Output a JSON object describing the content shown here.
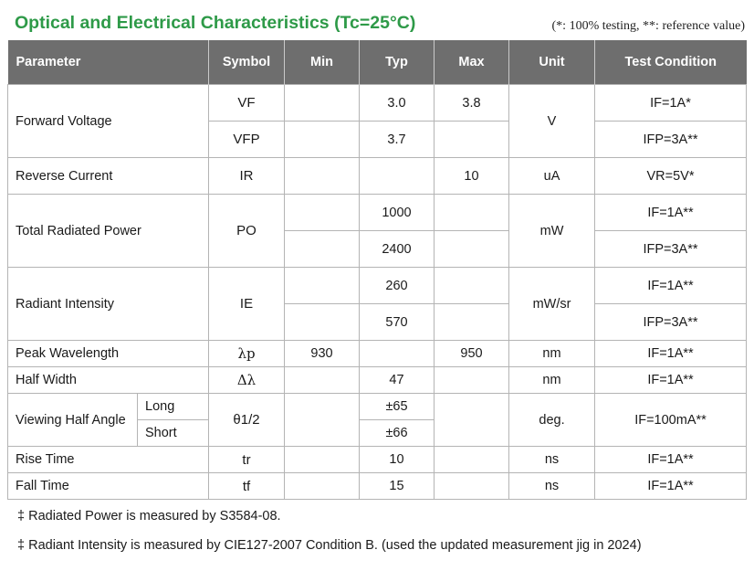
{
  "title": "Optical and Electrical Characteristics (Tc=25°C)",
  "note": "(*: 100% testing, **: reference value)",
  "headers": {
    "parameter": "Parameter",
    "symbol": "Symbol",
    "min": "Min",
    "typ": "Typ",
    "max": "Max",
    "unit": "Unit",
    "test_condition": "Test Condition"
  },
  "rows": {
    "forward_voltage": {
      "parameter": "Forward Voltage",
      "unit": "V",
      "a": {
        "symbol": "VF",
        "min": "",
        "typ": "3.0",
        "max": "3.8",
        "condition": "IF=1A*"
      },
      "b": {
        "symbol": "VFP",
        "min": "",
        "typ": "3.7",
        "max": "",
        "condition": "IFP=3A**"
      }
    },
    "reverse_current": {
      "parameter": "Reverse Current",
      "symbol": "IR",
      "min": "",
      "typ": "",
      "max": "10",
      "unit": "uA",
      "condition": "VR=5V*"
    },
    "total_radiated_power": {
      "parameter": "Total Radiated Power",
      "symbol": "PO",
      "unit": "mW",
      "a": {
        "min": "",
        "typ": "1000",
        "max": "",
        "condition": "IF=1A**"
      },
      "b": {
        "min": "",
        "typ": "2400",
        "max": "",
        "condition": "IFP=3A**"
      }
    },
    "radiant_intensity": {
      "parameter": "Radiant Intensity",
      "symbol": "IE",
      "unit": "mW/sr",
      "a": {
        "min": "",
        "typ": "260",
        "max": "",
        "condition": "IF=1A**"
      },
      "b": {
        "min": "",
        "typ": "570",
        "max": "",
        "condition": "IFP=3A**"
      }
    },
    "peak_wavelength": {
      "parameter": "Peak Wavelength",
      "symbol": "λp",
      "min": "930",
      "typ": "",
      "max": "950",
      "unit": "nm",
      "condition": "IF=1A**"
    },
    "half_width": {
      "parameter": "Half Width",
      "symbol": "Δλ",
      "min": "",
      "typ": "47",
      "max": "",
      "unit": "nm",
      "condition": "IF=1A**"
    },
    "viewing_half_angle": {
      "parameter": "Viewing Half Angle",
      "symbol": "θ1/2",
      "unit": "deg.",
      "condition": "IF=100mA**",
      "long": {
        "label": "Long",
        "typ": "±65"
      },
      "short": {
        "label": "Short",
        "typ": "±66"
      }
    },
    "rise_time": {
      "parameter": "Rise Time",
      "symbol": "tr",
      "min": "",
      "typ": "10",
      "max": "",
      "unit": "ns",
      "condition": "IF=1A**"
    },
    "fall_time": {
      "parameter": "Fall Time",
      "symbol": "tf",
      "min": "",
      "typ": "15",
      "max": "",
      "unit": "ns",
      "condition": "IF=1A**"
    }
  },
  "footnotes": [
    "‡ Radiated Power is measured by S3584-08.",
    "‡ Radiant Intensity is measured by CIE127-2007 Condition B. (used the updated measurement jig in 2024)"
  ]
}
